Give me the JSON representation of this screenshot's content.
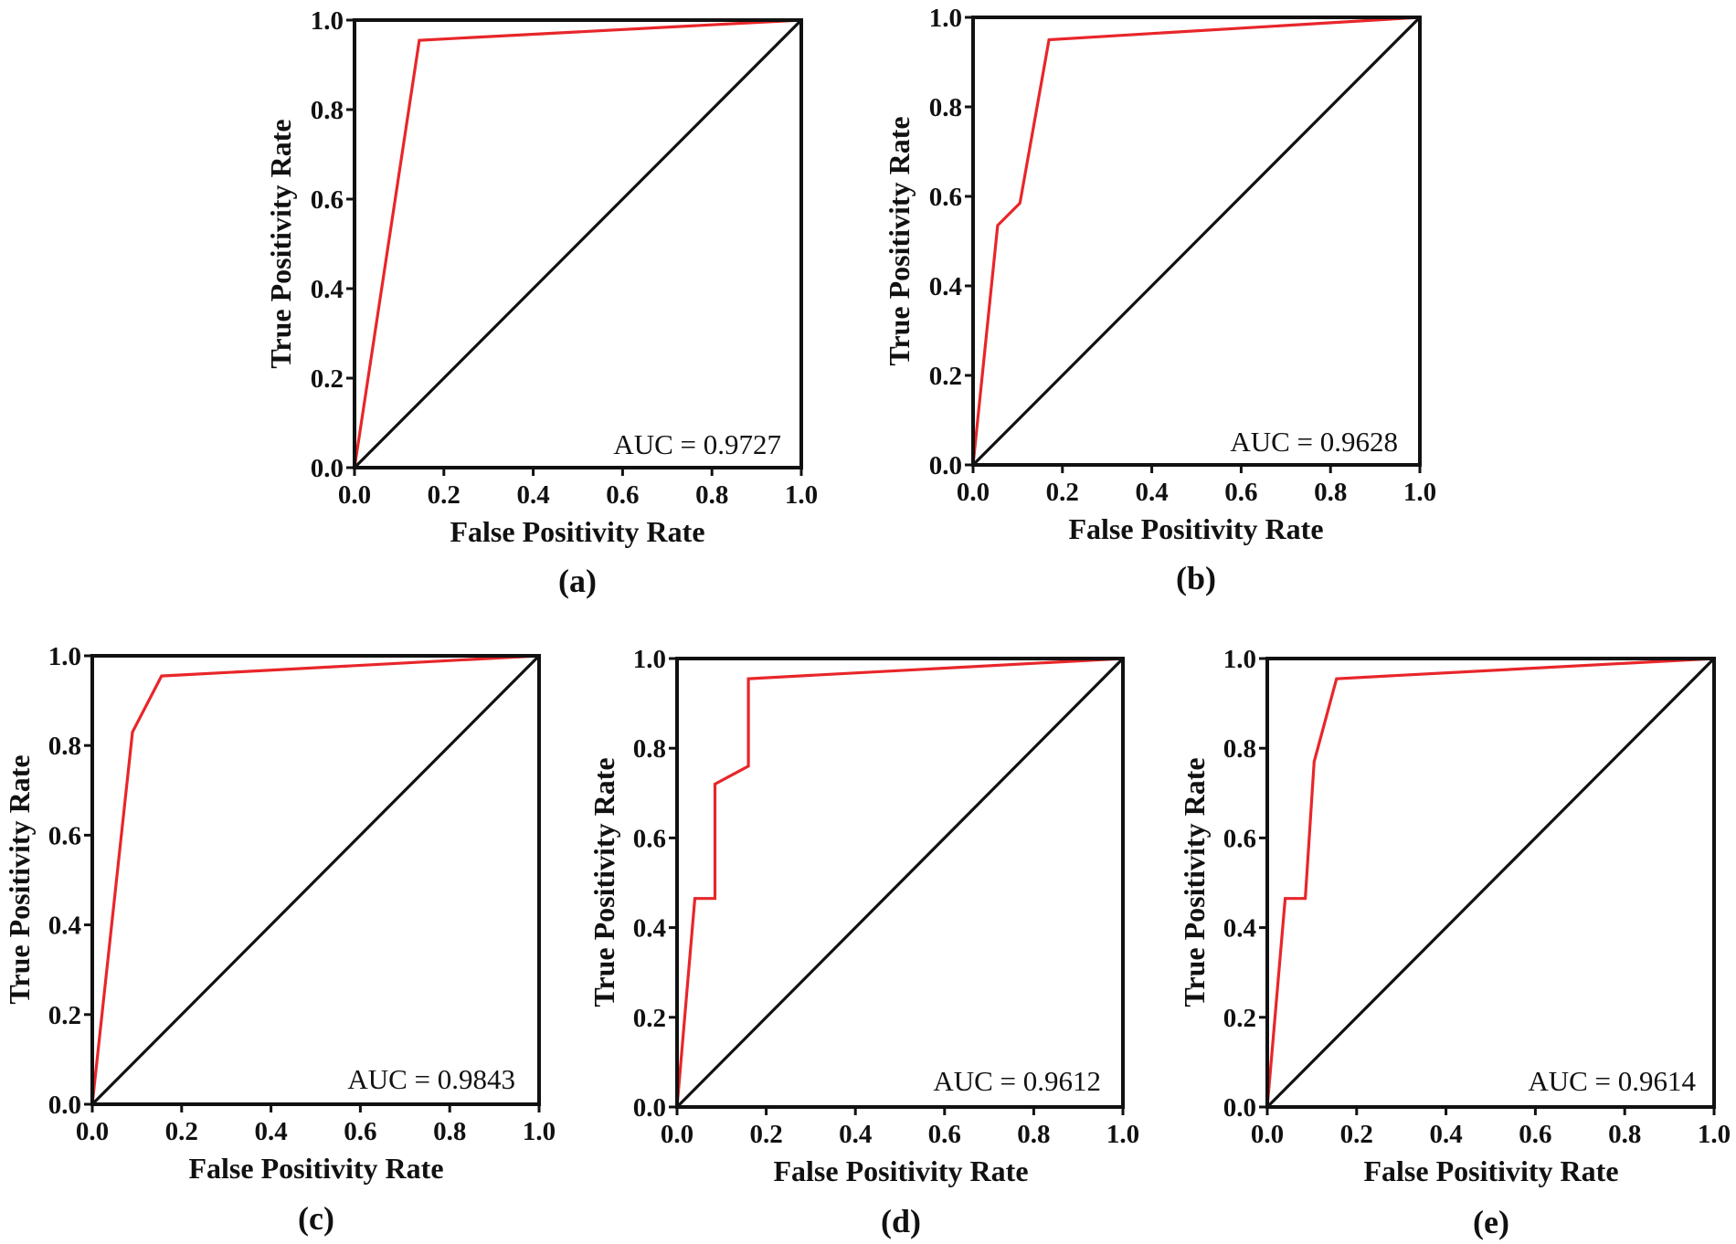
{
  "chart_data": [
    {
      "type": "line",
      "panel_label": "(a)",
      "xlabel": "False Positivity Rate",
      "ylabel": "True Positivity Rate",
      "xlim": [
        0,
        1
      ],
      "ylim": [
        0,
        1
      ],
      "xticks": [
        "0.0",
        "0.2",
        "0.4",
        "0.6",
        "0.8",
        "1.0"
      ],
      "yticks": [
        "0.0",
        "0.2",
        "0.4",
        "0.6",
        "0.8",
        "1.0"
      ],
      "annotation": "AUC = 0.9727",
      "grid": false,
      "series": [
        {
          "name": "ROC curve",
          "color": "#e8262a",
          "x": [
            0.0,
            0.145,
            1.0
          ],
          "y": [
            0.0,
            0.955,
            1.0
          ]
        },
        {
          "name": "chance",
          "color": "#111111",
          "x": [
            0.0,
            1.0
          ],
          "y": [
            0.0,
            1.0
          ]
        }
      ]
    },
    {
      "type": "line",
      "panel_label": "(b)",
      "xlabel": "False Positivity Rate",
      "ylabel": "True Positivity Rate",
      "xlim": [
        0,
        1
      ],
      "ylim": [
        0,
        1
      ],
      "xticks": [
        "0.0",
        "0.2",
        "0.4",
        "0.6",
        "0.8",
        "1.0"
      ],
      "yticks": [
        "0.0",
        "0.2",
        "0.4",
        "0.6",
        "0.8",
        "1.0"
      ],
      "annotation": "AUC = 0.9628",
      "grid": false,
      "series": [
        {
          "name": "ROC curve",
          "color": "#e8262a",
          "x": [
            0.0,
            0.055,
            0.105,
            0.17,
            1.0
          ],
          "y": [
            0.0,
            0.535,
            0.585,
            0.95,
            1.0
          ]
        },
        {
          "name": "chance",
          "color": "#111111",
          "x": [
            0.0,
            1.0
          ],
          "y": [
            0.0,
            1.0
          ]
        }
      ]
    },
    {
      "type": "line",
      "panel_label": "(c)",
      "xlabel": "False Positivity Rate",
      "ylabel": "True Positivity Rate",
      "xlim": [
        0,
        1
      ],
      "ylim": [
        0,
        1
      ],
      "xticks": [
        "0.0",
        "0.2",
        "0.4",
        "0.6",
        "0.8",
        "1.0"
      ],
      "yticks": [
        "0.0",
        "0.2",
        "0.4",
        "0.6",
        "0.8",
        "1.0"
      ],
      "annotation": "AUC = 0.9843",
      "grid": false,
      "series": [
        {
          "name": "ROC curve",
          "color": "#e8262a",
          "x": [
            0.0,
            0.09,
            0.155,
            1.0
          ],
          "y": [
            0.0,
            0.83,
            0.955,
            1.0
          ]
        },
        {
          "name": "chance",
          "color": "#111111",
          "x": [
            0.0,
            1.0
          ],
          "y": [
            0.0,
            1.0
          ]
        }
      ]
    },
    {
      "type": "line",
      "panel_label": "(d)",
      "xlabel": "False Positivity Rate",
      "ylabel": "True Positivity Rate",
      "xlim": [
        0,
        1
      ],
      "ylim": [
        0,
        1
      ],
      "xticks": [
        "0.0",
        "0.2",
        "0.4",
        "0.6",
        "0.8",
        "1.0"
      ],
      "yticks": [
        "0.0",
        "0.2",
        "0.4",
        "0.6",
        "0.8",
        "1.0"
      ],
      "annotation": "AUC = 0.9612",
      "grid": false,
      "series": [
        {
          "name": "ROC curve",
          "color": "#e8262a",
          "x": [
            0.0,
            0.04,
            0.085,
            0.085,
            0.16,
            0.16,
            1.0
          ],
          "y": [
            0.0,
            0.465,
            0.465,
            0.72,
            0.76,
            0.955,
            1.0
          ]
        },
        {
          "name": "chance",
          "color": "#111111",
          "x": [
            0.0,
            1.0
          ],
          "y": [
            0.0,
            1.0
          ]
        }
      ]
    },
    {
      "type": "line",
      "panel_label": "(e)",
      "xlabel": "False Positivity Rate",
      "ylabel": "True Positivity Rate",
      "xlim": [
        0,
        1
      ],
      "ylim": [
        0,
        1
      ],
      "xticks": [
        "0.0",
        "0.2",
        "0.4",
        "0.6",
        "0.8",
        "1.0"
      ],
      "yticks": [
        "0.0",
        "0.2",
        "0.4",
        "0.6",
        "0.8",
        "1.0"
      ],
      "annotation": "AUC = 0.9614",
      "grid": false,
      "series": [
        {
          "name": "ROC curve",
          "color": "#e8262a",
          "x": [
            0.0,
            0.04,
            0.085,
            0.105,
            0.155,
            1.0
          ],
          "y": [
            0.0,
            0.465,
            0.465,
            0.77,
            0.955,
            1.0
          ]
        },
        {
          "name": "chance",
          "color": "#111111",
          "x": [
            0.0,
            1.0
          ],
          "y": [
            0.0,
            1.0
          ]
        }
      ]
    }
  ]
}
